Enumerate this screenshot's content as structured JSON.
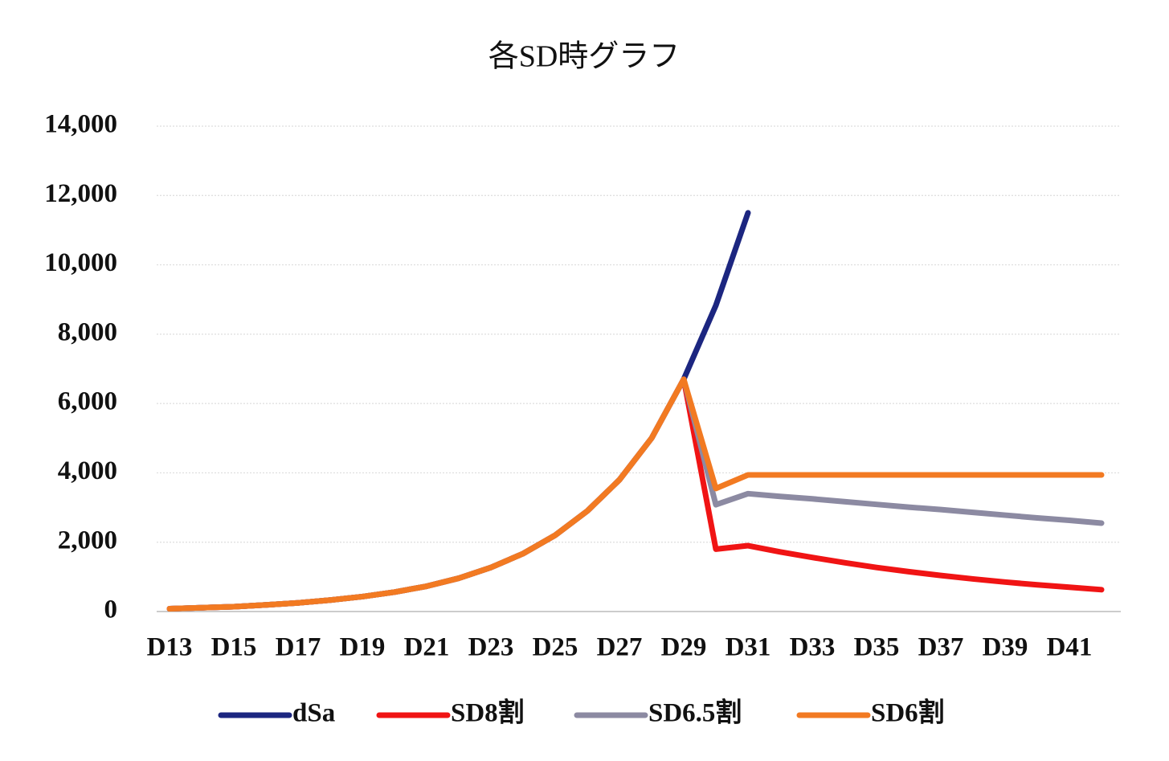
{
  "chart_data": {
    "type": "line",
    "title": "各SD時グラフ",
    "categories": [
      "D13",
      null,
      "D15",
      null,
      "D17",
      null,
      "D19",
      null,
      "D21",
      null,
      "D23",
      null,
      "D25",
      null,
      "D27",
      null,
      "D29",
      null,
      "D31",
      null,
      "D33",
      null,
      "D35",
      null,
      "D37",
      null,
      "D39",
      null,
      "D41",
      null
    ],
    "series": [
      {
        "name": "dSa",
        "color": "#1c2680",
        "values": [
          80,
          110,
          140,
          190,
          250,
          330,
          430,
          560,
          730,
          960,
          1270,
          1670,
          2200,
          2900,
          3800,
          5000,
          6700,
          8830,
          11500,
          null,
          null,
          null,
          null,
          null,
          null,
          null,
          null,
          null,
          null,
          null
        ]
      },
      {
        "name": "SD8割",
        "color": "#f01414",
        "values": [
          80,
          110,
          140,
          190,
          250,
          330,
          430,
          560,
          730,
          960,
          1270,
          1670,
          2200,
          2900,
          3800,
          5000,
          6700,
          1800,
          1900,
          1720,
          1560,
          1410,
          1270,
          1150,
          1040,
          940,
          850,
          770,
          700,
          630
        ]
      },
      {
        "name": "SD6.5割",
        "color": "#8c8aa2",
        "values": [
          80,
          110,
          140,
          190,
          250,
          330,
          430,
          560,
          730,
          960,
          1270,
          1670,
          2200,
          2900,
          3800,
          5000,
          6700,
          3080,
          3400,
          3320,
          3250,
          3170,
          3090,
          3010,
          2940,
          2860,
          2780,
          2700,
          2630,
          2550
        ]
      },
      {
        "name": "SD6割",
        "color": "#f27a22",
        "values": [
          80,
          110,
          140,
          190,
          250,
          330,
          430,
          560,
          730,
          960,
          1270,
          1670,
          2200,
          2900,
          3800,
          5000,
          6700,
          3550,
          3940,
          3940,
          3940,
          3940,
          3940,
          3940,
          3940,
          3940,
          3940,
          3940,
          3940,
          3940
        ]
      }
    ],
    "ylim": [
      0,
      14000
    ],
    "yticks": [
      0,
      {
        "value": 2000,
        "label": "2,000"
      },
      {
        "value": 4000,
        "label": "4,000"
      },
      {
        "value": 6000,
        "label": "6,000"
      },
      {
        "value": 8000,
        "label": "8,000"
      },
      {
        "value": 10000,
        "label": "10,000"
      },
      {
        "value": 12000,
        "label": "12,000"
      },
      {
        "value": 14000,
        "label": "14,000"
      }
    ],
    "grid": true
  }
}
